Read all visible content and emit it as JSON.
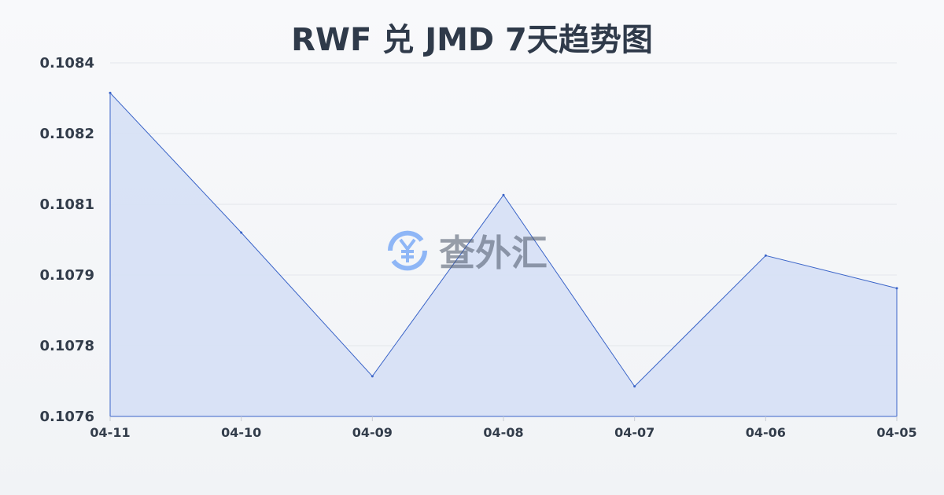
{
  "chart_data": {
    "type": "area",
    "title": "RWF 兑 JMD 7天趋势图",
    "categories": [
      "04-11",
      "04-10",
      "04-09",
      "04-08",
      "04-07",
      "04-06",
      "04-05"
    ],
    "series": [
      {
        "values": [
          0.108332,
          0.108016,
          0.107691,
          0.108101,
          0.107668,
          0.107964,
          0.10789
        ]
      }
    ],
    "ylim": [
      0.1076,
      0.1084
    ],
    "yticks": [
      0.1076,
      0.10776,
      0.10792,
      0.10808,
      0.10824,
      0.1084
    ],
    "ytick_labels": [
      "0.1076",
      "0.1078",
      "0.1079",
      "0.1081",
      "0.1082",
      "0.1084"
    ],
    "grid": true,
    "colors": {
      "line": "#3a64c8",
      "fill": "#d6e0f5"
    }
  },
  "watermark": {
    "text": "查外汇",
    "icon": "yen-exchange-icon"
  }
}
